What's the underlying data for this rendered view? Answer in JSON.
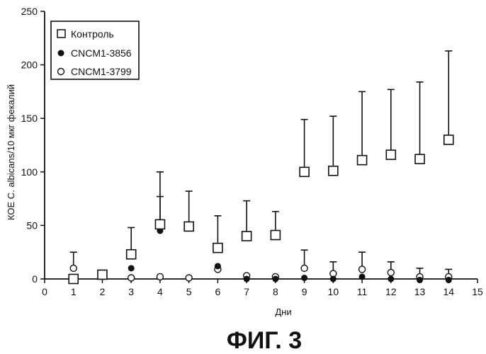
{
  "chart_data": {
    "type": "scatter",
    "xlabel": "Дни",
    "ylabel": "КОЕ C. albicans/10 мкг фекалий",
    "xlim": [
      0,
      15
    ],
    "ylim": [
      0,
      250
    ],
    "xticks": [
      0,
      1,
      2,
      3,
      4,
      5,
      6,
      7,
      8,
      9,
      10,
      11,
      12,
      13,
      14,
      15
    ],
    "yticks": [
      0,
      50,
      100,
      150,
      200,
      250
    ],
    "legend_position": "top-left",
    "grid": false,
    "series": [
      {
        "name": "Контроль",
        "marker": "open-square",
        "points": [
          {
            "x": 1,
            "y": 0
          },
          {
            "x": 2,
            "y": 4,
            "err": 6
          },
          {
            "x": 3,
            "y": 23,
            "err": 48
          },
          {
            "x": 4,
            "y": 51,
            "err": 100
          },
          {
            "x": 5,
            "y": 49,
            "err": 82
          },
          {
            "x": 6,
            "y": 29,
            "err": 59
          },
          {
            "x": 7,
            "y": 40,
            "err": 73
          },
          {
            "x": 8,
            "y": 41,
            "err": 63
          },
          {
            "x": 9,
            "y": 100,
            "err": 149
          },
          {
            "x": 10,
            "y": 101,
            "err": 152
          },
          {
            "x": 11,
            "y": 111,
            "err": 175
          },
          {
            "x": 12,
            "y": 116,
            "err": 177
          },
          {
            "x": 13,
            "y": 112,
            "err": 184
          },
          {
            "x": 14,
            "y": 130,
            "err": 213
          }
        ]
      },
      {
        "name": "CNCM1-3856",
        "marker": "filled-circle",
        "points": [
          {
            "x": 1,
            "y": 0
          },
          {
            "x": 2,
            "y": 3
          },
          {
            "x": 3,
            "y": 10
          },
          {
            "x": 4,
            "y": 45,
            "err": 77
          },
          {
            "x": 6,
            "y": 12
          },
          {
            "x": 7,
            "y": 0
          },
          {
            "x": 8,
            "y": 0
          },
          {
            "x": 9,
            "y": 1
          },
          {
            "x": 10,
            "y": 0
          },
          {
            "x": 11,
            "y": 2
          },
          {
            "x": 12,
            "y": 0
          },
          {
            "x": 13,
            "y": -1
          },
          {
            "x": 14,
            "y": -1
          }
        ]
      },
      {
        "name": "CNCM1-3799",
        "marker": "open-circle",
        "points": [
          {
            "x": 1,
            "y": 10,
            "err": 25
          },
          {
            "x": 2,
            "y": 3
          },
          {
            "x": 3,
            "y": 1
          },
          {
            "x": 4,
            "y": 2
          },
          {
            "x": 5,
            "y": 1
          },
          {
            "x": 6,
            "y": 9
          },
          {
            "x": 7,
            "y": 3
          },
          {
            "x": 8,
            "y": 2
          },
          {
            "x": 9,
            "y": 10,
            "err": 27
          },
          {
            "x": 10,
            "y": 5,
            "err": 16
          },
          {
            "x": 11,
            "y": 9,
            "err": 25
          },
          {
            "x": 12,
            "y": 6,
            "err": 16
          },
          {
            "x": 13,
            "y": 2,
            "err": 10
          },
          {
            "x": 14,
            "y": 2,
            "err": 9
          }
        ]
      }
    ]
  },
  "caption": "ФИГ. 3"
}
